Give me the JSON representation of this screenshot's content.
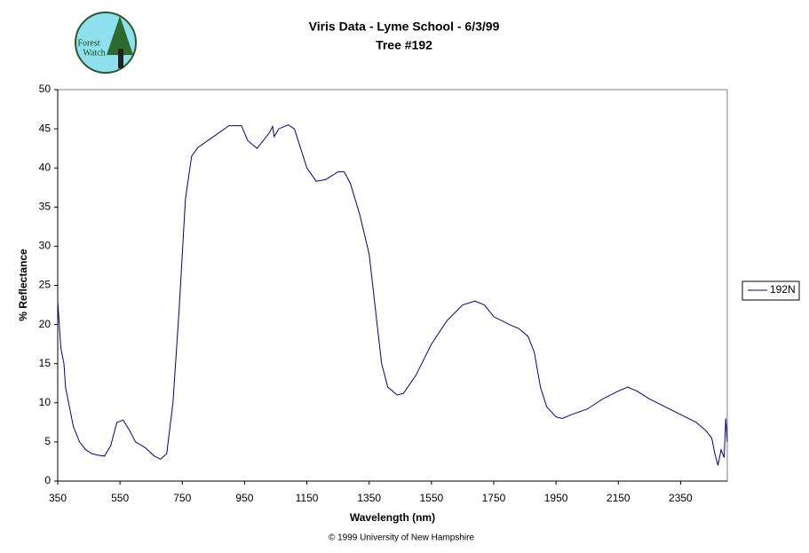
{
  "logo": {
    "line1": "Forest",
    "line2": "Watch"
  },
  "chart_data": {
    "type": "line",
    "title": "Viris Data - Lyme School - 6/3/99",
    "subtitle": "Tree #192",
    "x_label": "Wavelength (nm)",
    "y_label": "% Reflectance",
    "footer": "© 1999 University of New Hampshire",
    "xlim": [
      350,
      2500
    ],
    "xticks": [
      350,
      550,
      750,
      950,
      1150,
      1350,
      1550,
      1750,
      1950,
      2150,
      2350
    ],
    "ylim": [
      0,
      50
    ],
    "yticks": [
      0,
      5,
      10,
      15,
      20,
      25,
      30,
      35,
      40,
      45,
      50
    ],
    "legend": "right",
    "x": [
      350,
      355,
      360,
      370,
      375,
      390,
      400,
      420,
      440,
      460,
      480,
      500,
      520,
      540,
      560,
      580,
      600,
      630,
      660,
      680,
      700,
      720,
      740,
      760,
      780,
      800,
      850,
      900,
      940,
      960,
      990,
      1010,
      1030,
      1040,
      1045,
      1060,
      1090,
      1110,
      1130,
      1150,
      1180,
      1210,
      1250,
      1270,
      1290,
      1320,
      1350,
      1370,
      1390,
      1410,
      1440,
      1460,
      1500,
      1550,
      1600,
      1650,
      1690,
      1720,
      1750,
      1800,
      1830,
      1860,
      1880,
      1900,
      1920,
      1950,
      1970,
      2000,
      2050,
      2100,
      2150,
      2180,
      2210,
      2250,
      2300,
      2350,
      2400,
      2430,
      2450,
      2460,
      2470,
      2480,
      2490,
      2495,
      2500
    ],
    "series": [
      {
        "name": "192N",
        "color": "#000080",
        "values": [
          23,
          20,
          17,
          15,
          12,
          9,
          7,
          5,
          4,
          3.5,
          3.3,
          3.2,
          4.5,
          7.5,
          7.8,
          6.5,
          5,
          4.3,
          3.2,
          2.8,
          3.5,
          10,
          22,
          36,
          41.5,
          42.6,
          44,
          45.4,
          45.4,
          43.5,
          42.5,
          43.5,
          44.5,
          45.3,
          44,
          45,
          45.5,
          45,
          42.5,
          40,
          38.3,
          38.5,
          39.5,
          39.5,
          38,
          34,
          29,
          22,
          15,
          12,
          11,
          11.2,
          13.5,
          17.5,
          20.5,
          22.5,
          23,
          22.5,
          21,
          20,
          19.5,
          18.5,
          16.5,
          12,
          9.5,
          8.2,
          8,
          8.5,
          9.2,
          10.5,
          11.5,
          12,
          11.5,
          10.5,
          9.5,
          8.5,
          7.5,
          6.5,
          5.5,
          3.5,
          2,
          4,
          3,
          8,
          5
        ]
      }
    ]
  }
}
